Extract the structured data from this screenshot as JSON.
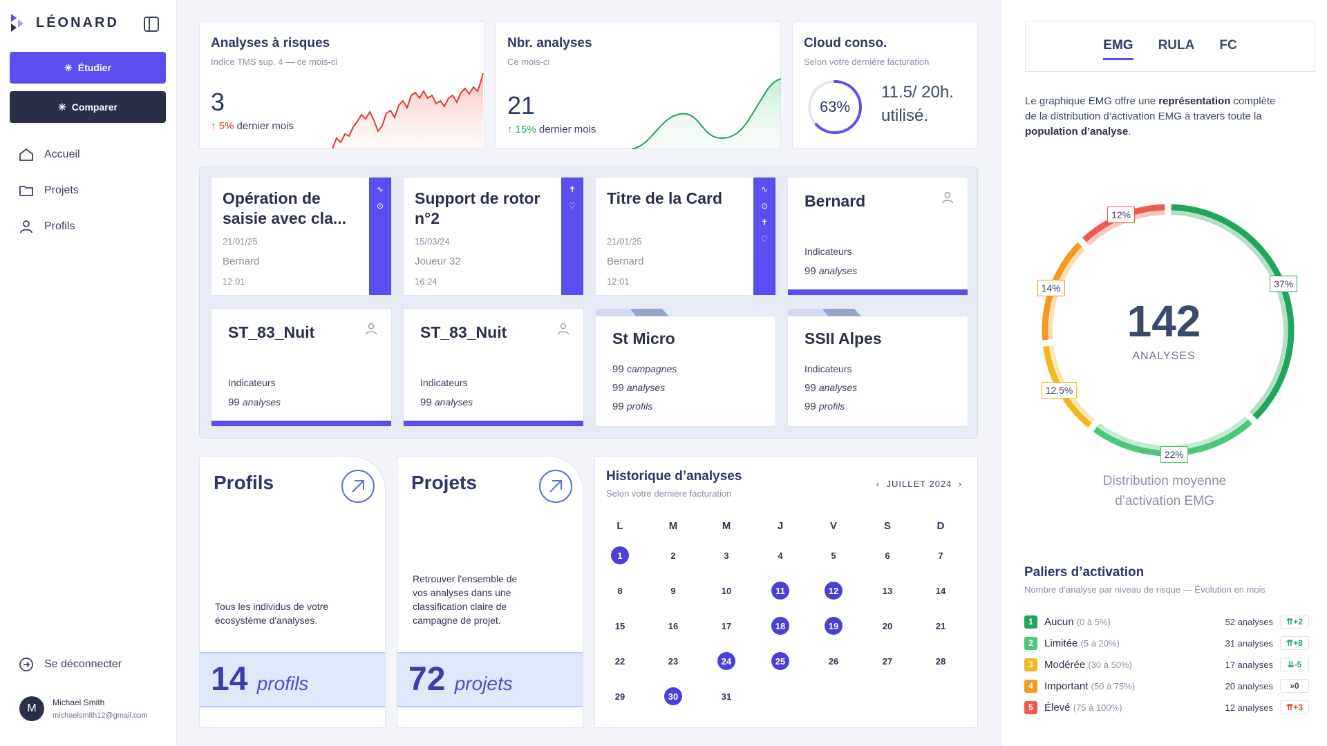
{
  "sidebar": {
    "brand": "LÉONARD",
    "buttons": {
      "study": "Étudier",
      "compare": "Comparer"
    },
    "nav": [
      {
        "label": "Accueil",
        "icon": "home-icon"
      },
      {
        "label": "Projets",
        "icon": "folder-icon"
      },
      {
        "label": "Profils",
        "icon": "user-icon"
      }
    ],
    "logout": "Se déconnecter",
    "user": {
      "initial": "M",
      "name": "Michael Smith",
      "email": "michaelsmith12@gmail.com"
    }
  },
  "kpis": [
    {
      "title": "Analyses à risques",
      "subtitle": "Indice TMS sup. 4 — ce mois-ci",
      "value": "3",
      "trend_value": "5%",
      "trend_text": "dernier mois"
    },
    {
      "title": "Nbr. analyses",
      "subtitle": "Ce mois-ci",
      "value": "21",
      "trend_value": "15%",
      "trend_text": "dernier mois"
    },
    {
      "title": "Cloud conso.",
      "subtitle": "Selon votre dernière facturation",
      "gauge": "63%",
      "gauge_fraction": 0.63,
      "usage": "11.5/ 20h.",
      "usage_label": "utilisé."
    }
  ],
  "cards_top": [
    {
      "title": "Opération de saisie avec cla...",
      "date": "21/01/25",
      "person": "Bernard",
      "time": "12:01",
      "icons": [
        "pulse-icon",
        "play-icon"
      ]
    },
    {
      "title": "Support de rotor n°2",
      "date": "15/03/24",
      "person": "Joueur 32",
      "time": "16:24",
      "icons": [
        "body-icon",
        "heart-icon"
      ]
    },
    {
      "title": "Titre de la Card",
      "date": "21/01/25",
      "person": "Bernard",
      "time": "12:01",
      "icons": [
        "pulse-icon",
        "play-icon",
        "body-icon",
        "heart-icon"
      ]
    },
    {
      "title": "Bernard",
      "indicators": "Indicateurs",
      "count": "99",
      "unit": "analyses"
    }
  ],
  "cards_bottom": [
    {
      "title": "ST_83_Nuit",
      "indicators": "Indicateurs",
      "count": "99",
      "unit": "analyses"
    },
    {
      "title": "ST_83_Nuit",
      "indicators": "Indicateurs",
      "count": "99",
      "unit": "analyses"
    },
    {
      "title": "St Micro",
      "lines": [
        {
          "count": "99",
          "unit": "campagnes"
        },
        {
          "count": "99",
          "unit": "analyses"
        },
        {
          "count": "99",
          "unit": "profils"
        }
      ]
    },
    {
      "title": "SSII Alpes",
      "indicators": "Indicateurs",
      "lines": [
        {
          "count": "99",
          "unit": "analyses"
        },
        {
          "count": "99",
          "unit": "profils"
        }
      ]
    }
  ],
  "big_cards": [
    {
      "title": "Profils",
      "desc": "Tous les individus de votre écosystème d'analyses.",
      "value": "14",
      "unit": "profils"
    },
    {
      "title": "Projets",
      "desc": "Retrouver l'ensemble de vos analyses dans une classification claire de campagne de projet.",
      "value": "72",
      "unit": "projets"
    }
  ],
  "calendar": {
    "title": "Historique d’analyses",
    "subtitle": "Selon votre dernière facturation",
    "month": "JUILLET 2024",
    "days": [
      "L",
      "M",
      "M",
      "J",
      "V",
      "S",
      "D"
    ],
    "selected": [
      1,
      11,
      12,
      18,
      19,
      24,
      25,
      30
    ]
  },
  "right": {
    "tabs": [
      "EMG",
      "RULA",
      "FC"
    ],
    "desc_pre": "Le graphique EMG offre une ",
    "desc_b1": "représentation",
    "desc_mid": " complète de la distribution d’activation EMG à travers toute la ",
    "desc_b2": "population d’analyse",
    "desc_post": ".",
    "total": "142",
    "total_label": "ANALYSES",
    "distribution": "Distribution moyenne d’activation EMG",
    "segments": [
      {
        "label": "37%",
        "value": 37,
        "color": "#1fa65a"
      },
      {
        "label": "22%",
        "value": 22,
        "color": "#4cc777"
      },
      {
        "label": "12.5%",
        "value": 12.5,
        "color": "#f2b71f"
      },
      {
        "label": "14%",
        "value": 14,
        "color": "#f39a1f"
      },
      {
        "label": "12%",
        "value": 12,
        "color": "#ee5a4e"
      }
    ],
    "paliers_title": "Paliers d’activation",
    "paliers_sub": "Nombre d’analyse par niveau de risque — Évolution en mois",
    "paliers": [
      {
        "num": "1",
        "name": "Aucun",
        "range": "(0 à 5%)",
        "count": "52 analyses",
        "delta": "+2",
        "color": "#1fa65a",
        "delta_color": "#1fa65a"
      },
      {
        "num": "2",
        "name": "Limitée",
        "range": "(5 à 20%)",
        "count": "31 analyses",
        "delta": "+8",
        "color": "#4cc777",
        "delta_color": "#1fa65a"
      },
      {
        "num": "3",
        "name": "Modérée",
        "range": "(30 à 50%)",
        "count": "17 analyses",
        "delta": "-5",
        "color": "#f2b71f",
        "delta_color": "#1fa65a"
      },
      {
        "num": "4",
        "name": "Important",
        "range": "(50 à 75%)",
        "count": "20 analyses",
        "delta": "0",
        "color": "#f39a1f",
        "delta_color": "#3a4060"
      },
      {
        "num": "5",
        "name": "Élevé",
        "range": "(75 à 100%)",
        "count": "12 analyses",
        "delta": "+3",
        "color": "#ee5a4e",
        "delta_color": "#e03a2e"
      }
    ]
  }
}
